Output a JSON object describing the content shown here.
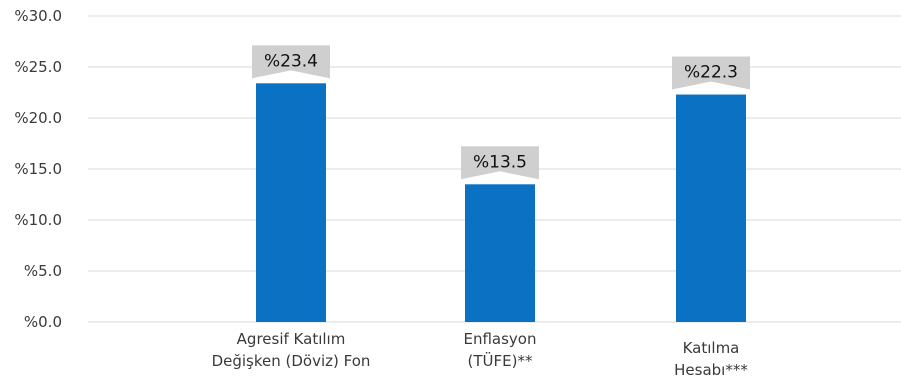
{
  "chart_data": {
    "type": "bar",
    "categories": [
      [
        "Agresif Katılım",
        "Değişken (Döviz) Fon"
      ],
      [
        "Enflasyon",
        "(TÜFE)**"
      ],
      [
        "Katılma",
        "Hesabı***"
      ]
    ],
    "values": [
      23.4,
      13.5,
      22.3
    ],
    "value_labels": [
      "%23.4",
      "%13.5",
      "%22.3"
    ],
    "y_ticks": [
      "%0.0",
      "%5.0",
      "%10.0",
      "%15.0",
      "%20.0",
      "%25.0",
      "%30.0"
    ],
    "ylim": [
      0,
      30
    ],
    "grid": true,
    "colors": {
      "bar": "#0b71c3",
      "badge": "#cfcfcf",
      "grid": "#d9d9d9",
      "text": "#3a3a3a"
    }
  }
}
